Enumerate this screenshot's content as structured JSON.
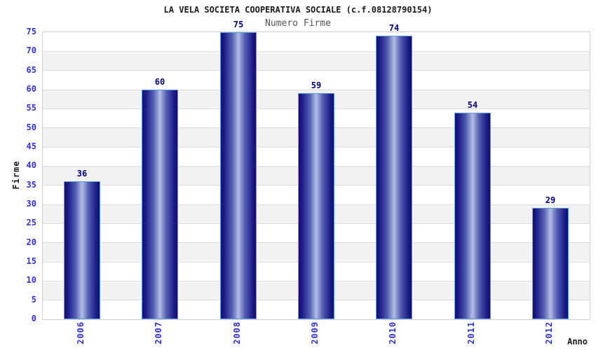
{
  "chart_data": {
    "type": "bar",
    "title": "LA VELA SOCIETA COOPERATIVA SOCIALE (c.f.08128790154)",
    "subtitle": "Numero Firme",
    "xlabel": "Anno",
    "ylabel": "Firme",
    "categories": [
      "2006",
      "2007",
      "2008",
      "2009",
      "2010",
      "2011",
      "2012"
    ],
    "values": [
      36,
      60,
      75,
      59,
      74,
      54,
      29
    ],
    "ylim": [
      0,
      75
    ],
    "ytick_step": 5,
    "grid": "horizontal",
    "legend_visible": false,
    "value_labels_visible": true,
    "colors": {
      "tick_label": "#3232d9",
      "value_label": "#000080",
      "title": "#1a1a1a",
      "subtitle": "#555555",
      "bar_dark": "#10106e",
      "bar_light": "#b4bde4",
      "bar_border": "#5f9ce8",
      "band_alt": "#f2f2f2",
      "gridline": "#dcdcdc",
      "plot_border": "#d0d0d0"
    }
  }
}
